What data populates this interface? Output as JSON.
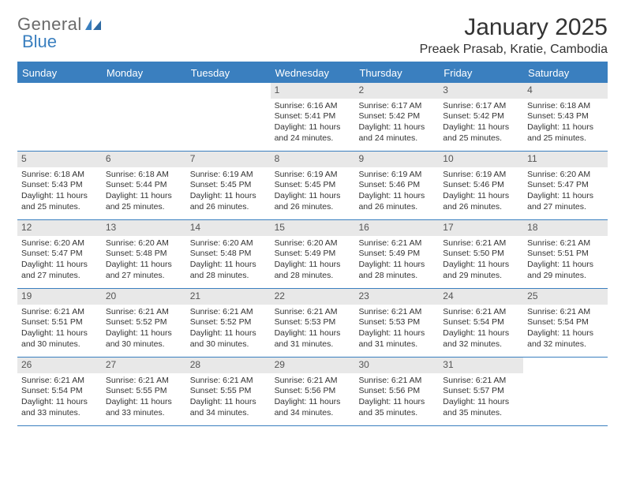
{
  "brand": {
    "part1": "General",
    "part2": "Blue"
  },
  "title": "January 2025",
  "location": "Preaek Prasab, Kratie, Cambodia",
  "colors": {
    "accent": "#3a7fbf",
    "header_bg": "#3a7fbf",
    "header_text": "#ffffff",
    "daynum_bg": "#e8e8e8",
    "text": "#333333",
    "background": "#ffffff"
  },
  "day_names": [
    "Sunday",
    "Monday",
    "Tuesday",
    "Wednesday",
    "Thursday",
    "Friday",
    "Saturday"
  ],
  "weeks": [
    [
      null,
      null,
      null,
      {
        "n": "1",
        "sr": "6:16 AM",
        "ss": "5:41 PM",
        "dl": "11 hours and 24 minutes."
      },
      {
        "n": "2",
        "sr": "6:17 AM",
        "ss": "5:42 PM",
        "dl": "11 hours and 24 minutes."
      },
      {
        "n": "3",
        "sr": "6:17 AM",
        "ss": "5:42 PM",
        "dl": "11 hours and 25 minutes."
      },
      {
        "n": "4",
        "sr": "6:18 AM",
        "ss": "5:43 PM",
        "dl": "11 hours and 25 minutes."
      }
    ],
    [
      {
        "n": "5",
        "sr": "6:18 AM",
        "ss": "5:43 PM",
        "dl": "11 hours and 25 minutes."
      },
      {
        "n": "6",
        "sr": "6:18 AM",
        "ss": "5:44 PM",
        "dl": "11 hours and 25 minutes."
      },
      {
        "n": "7",
        "sr": "6:19 AM",
        "ss": "5:45 PM",
        "dl": "11 hours and 26 minutes."
      },
      {
        "n": "8",
        "sr": "6:19 AM",
        "ss": "5:45 PM",
        "dl": "11 hours and 26 minutes."
      },
      {
        "n": "9",
        "sr": "6:19 AM",
        "ss": "5:46 PM",
        "dl": "11 hours and 26 minutes."
      },
      {
        "n": "10",
        "sr": "6:19 AM",
        "ss": "5:46 PM",
        "dl": "11 hours and 26 minutes."
      },
      {
        "n": "11",
        "sr": "6:20 AM",
        "ss": "5:47 PM",
        "dl": "11 hours and 27 minutes."
      }
    ],
    [
      {
        "n": "12",
        "sr": "6:20 AM",
        "ss": "5:47 PM",
        "dl": "11 hours and 27 minutes."
      },
      {
        "n": "13",
        "sr": "6:20 AM",
        "ss": "5:48 PM",
        "dl": "11 hours and 27 minutes."
      },
      {
        "n": "14",
        "sr": "6:20 AM",
        "ss": "5:48 PM",
        "dl": "11 hours and 28 minutes."
      },
      {
        "n": "15",
        "sr": "6:20 AM",
        "ss": "5:49 PM",
        "dl": "11 hours and 28 minutes."
      },
      {
        "n": "16",
        "sr": "6:21 AM",
        "ss": "5:49 PM",
        "dl": "11 hours and 28 minutes."
      },
      {
        "n": "17",
        "sr": "6:21 AM",
        "ss": "5:50 PM",
        "dl": "11 hours and 29 minutes."
      },
      {
        "n": "18",
        "sr": "6:21 AM",
        "ss": "5:51 PM",
        "dl": "11 hours and 29 minutes."
      }
    ],
    [
      {
        "n": "19",
        "sr": "6:21 AM",
        "ss": "5:51 PM",
        "dl": "11 hours and 30 minutes."
      },
      {
        "n": "20",
        "sr": "6:21 AM",
        "ss": "5:52 PM",
        "dl": "11 hours and 30 minutes."
      },
      {
        "n": "21",
        "sr": "6:21 AM",
        "ss": "5:52 PM",
        "dl": "11 hours and 30 minutes."
      },
      {
        "n": "22",
        "sr": "6:21 AM",
        "ss": "5:53 PM",
        "dl": "11 hours and 31 minutes."
      },
      {
        "n": "23",
        "sr": "6:21 AM",
        "ss": "5:53 PM",
        "dl": "11 hours and 31 minutes."
      },
      {
        "n": "24",
        "sr": "6:21 AM",
        "ss": "5:54 PM",
        "dl": "11 hours and 32 minutes."
      },
      {
        "n": "25",
        "sr": "6:21 AM",
        "ss": "5:54 PM",
        "dl": "11 hours and 32 minutes."
      }
    ],
    [
      {
        "n": "26",
        "sr": "6:21 AM",
        "ss": "5:54 PM",
        "dl": "11 hours and 33 minutes."
      },
      {
        "n": "27",
        "sr": "6:21 AM",
        "ss": "5:55 PM",
        "dl": "11 hours and 33 minutes."
      },
      {
        "n": "28",
        "sr": "6:21 AM",
        "ss": "5:55 PM",
        "dl": "11 hours and 34 minutes."
      },
      {
        "n": "29",
        "sr": "6:21 AM",
        "ss": "5:56 PM",
        "dl": "11 hours and 34 minutes."
      },
      {
        "n": "30",
        "sr": "6:21 AM",
        "ss": "5:56 PM",
        "dl": "11 hours and 35 minutes."
      },
      {
        "n": "31",
        "sr": "6:21 AM",
        "ss": "5:57 PM",
        "dl": "11 hours and 35 minutes."
      },
      null
    ]
  ],
  "labels": {
    "sunrise": "Sunrise:",
    "sunset": "Sunset:",
    "daylight": "Daylight:"
  }
}
